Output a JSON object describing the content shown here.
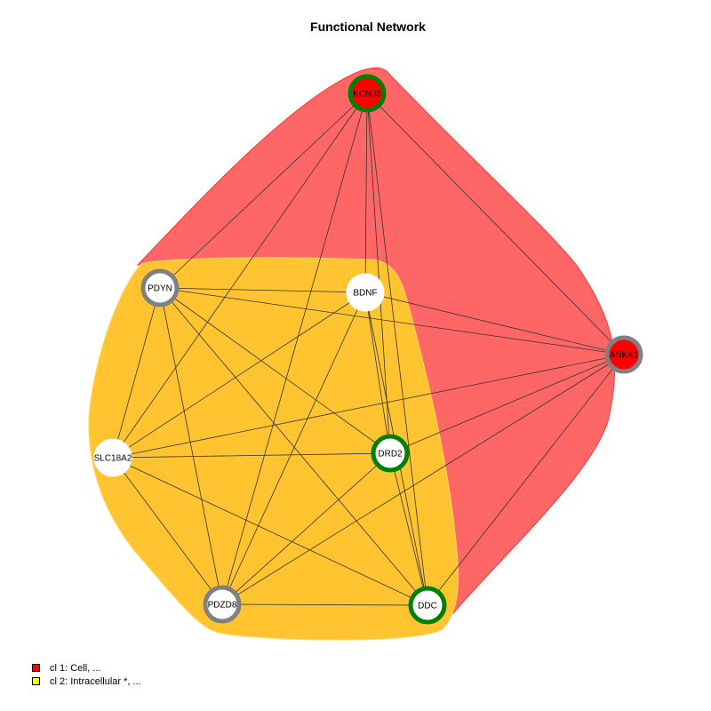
{
  "title": "Functional Network",
  "clusters": [
    {
      "id": "cl1",
      "label": "cl 1: Cell, ...",
      "fill": "#ff6666",
      "stroke": "#ff3333",
      "legend_color": "#ff0000"
    },
    {
      "id": "cl2",
      "label": "cl 2: Intracellular *, ...",
      "fill": "#ffc430",
      "stroke": "#ffd966",
      "legend_color": "#ffff00"
    }
  ],
  "nodes": [
    {
      "id": "KCNJ3",
      "label": "KCNJ3",
      "fill": "#ff0000",
      "ring": "#008000"
    },
    {
      "id": "ANKK1",
      "label": "ANKK1",
      "fill": "#ff0000",
      "ring": "#808080"
    },
    {
      "id": "PDYN",
      "label": "PDYN",
      "fill": "#ffffff",
      "ring": "#808080"
    },
    {
      "id": "BDNF",
      "label": "BDNF",
      "fill": "#ffffff",
      "ring": "#ffffff"
    },
    {
      "id": "SLC18A2",
      "label": "SLC18A2",
      "fill": "#ffffff",
      "ring": "#ffffff"
    },
    {
      "id": "DRD2",
      "label": "DRD2",
      "fill": "#ffffff",
      "ring": "#008000"
    },
    {
      "id": "PDZD8",
      "label": "PDZD8",
      "fill": "#ffffff",
      "ring": "#808080"
    },
    {
      "id": "DDC",
      "label": "DDC",
      "fill": "#ffffff",
      "ring": "#008000"
    }
  ],
  "edges": [
    [
      "KCNJ3",
      "PDYN"
    ],
    [
      "KCNJ3",
      "BDNF"
    ],
    [
      "KCNJ3",
      "SLC18A2"
    ],
    [
      "KCNJ3",
      "DRD2"
    ],
    [
      "KCNJ3",
      "PDZD8"
    ],
    [
      "KCNJ3",
      "DDC"
    ],
    [
      "KCNJ3",
      "ANKK1"
    ],
    [
      "PDYN",
      "BDNF"
    ],
    [
      "PDYN",
      "ANKK1"
    ],
    [
      "PDYN",
      "SLC18A2"
    ],
    [
      "PDYN",
      "DRD2"
    ],
    [
      "PDYN",
      "PDZD8"
    ],
    [
      "PDYN",
      "DDC"
    ],
    [
      "BDNF",
      "ANKK1"
    ],
    [
      "BDNF",
      "SLC18A2"
    ],
    [
      "BDNF",
      "DRD2"
    ],
    [
      "BDNF",
      "PDZD8"
    ],
    [
      "BDNF",
      "DDC"
    ],
    [
      "ANKK1",
      "SLC18A2"
    ],
    [
      "ANKK1",
      "DRD2"
    ],
    [
      "ANKK1",
      "PDZD8"
    ],
    [
      "ANKK1",
      "DDC"
    ],
    [
      "SLC18A2",
      "DRD2"
    ],
    [
      "SLC18A2",
      "PDZD8"
    ],
    [
      "SLC18A2",
      "DDC"
    ],
    [
      "DRD2",
      "PDZD8"
    ],
    [
      "DRD2",
      "DDC"
    ],
    [
      "PDZD8",
      "DDC"
    ]
  ]
}
